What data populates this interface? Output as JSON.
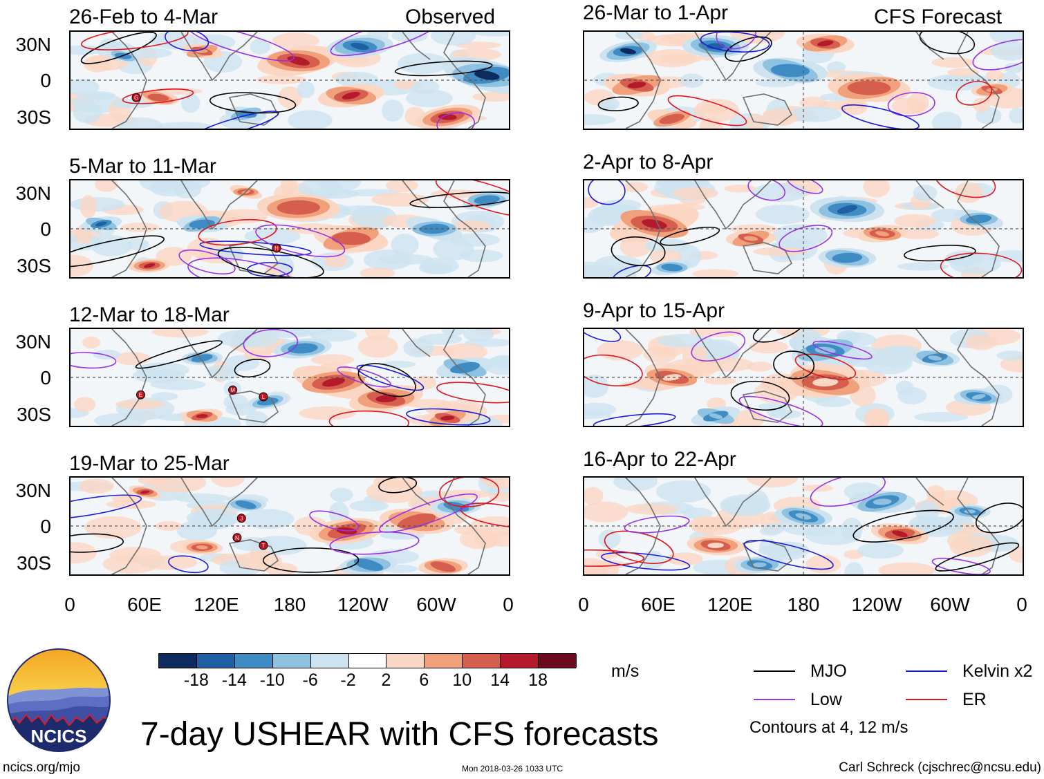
{
  "header": {
    "observed_label": "Observed",
    "forecast_label": "CFS Forecast"
  },
  "panels": [
    {
      "title": "26-Feb to 4-Mar",
      "kind": "observed",
      "markers": [
        "G"
      ]
    },
    {
      "title": "5-Mar to 11-Mar",
      "kind": "observed",
      "markers": [
        "H"
      ]
    },
    {
      "title": "12-Mar to 18-Mar",
      "kind": "observed",
      "markers": [
        "E",
        "M",
        "L"
      ]
    },
    {
      "title": "19-Mar to 25-Mar",
      "kind": "observed",
      "markers": [
        "J",
        "N",
        "T"
      ]
    },
    {
      "title": "26-Mar to 1-Apr",
      "kind": "forecast",
      "markers": []
    },
    {
      "title": "2-Apr to 8-Apr",
      "kind": "forecast",
      "markers": []
    },
    {
      "title": "9-Apr to 15-Apr",
      "kind": "forecast",
      "markers": []
    },
    {
      "title": "16-Apr to 22-Apr",
      "kind": "forecast",
      "markers": []
    }
  ],
  "lat_labels": [
    "30N",
    "0",
    "30S"
  ],
  "lon_labels": [
    "0",
    "60E",
    "120E",
    "180",
    "120W",
    "60W",
    "0"
  ],
  "colorbar": {
    "unit": "m/s",
    "colors": [
      "#0d2b5e",
      "#1f5fa3",
      "#3f8cc5",
      "#8fc1e0",
      "#cde3f0",
      "#ffffff",
      "#fbd7c3",
      "#f0a17c",
      "#d55e4f",
      "#b31a2c",
      "#6b0a1e"
    ],
    "ticks": [
      "-18",
      "-14",
      "-10",
      "-6",
      "-2",
      "2",
      "6",
      "10",
      "14",
      "18"
    ]
  },
  "legend": {
    "items": [
      {
        "label": "MJO",
        "color": "#000000"
      },
      {
        "label": "Kelvin x2",
        "color": "#1a1adb"
      },
      {
        "label": "Low",
        "color": "#9b30e6"
      },
      {
        "label": "ER",
        "color": "#e0141e"
      }
    ],
    "note": "Contours at 4, 12 m/s"
  },
  "logo": {
    "text": "NCICS"
  },
  "main_title": "7-day USHEAR with CFS forecasts",
  "footer": {
    "url": "ncics.org/mjo",
    "timestamp": "Mon 2018-03-26 1033 UTC",
    "author": "Carl Schreck (cjschrec@ncsu.edu)"
  }
}
